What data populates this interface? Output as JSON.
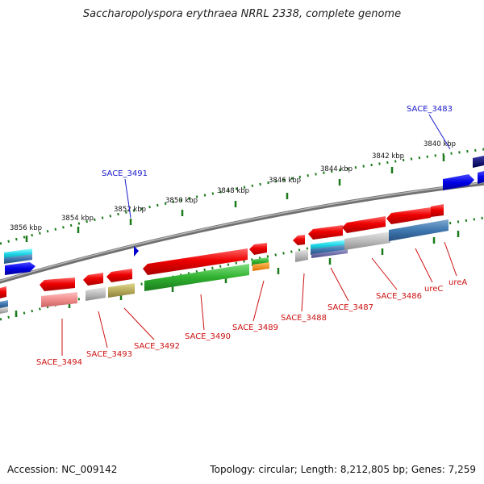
{
  "title": "Saccharopolyspora erythraea NRRL 2338, complete genome",
  "footer": {
    "accession": "Accession: NC_009142",
    "summary": "Topology: circular; Length: 8,212,805 bp; Genes: 7,259"
  },
  "colors": {
    "label_top": "#1a1acc",
    "label_bottom": "#cc1111",
    "tick": "#1a7a1a",
    "backbone": "#7a7a7a"
  },
  "ticks": [
    {
      "label": "3856 kbp"
    },
    {
      "label": "3854 kbp"
    },
    {
      "label": "3852 kbp"
    },
    {
      "label": "3850 kbp"
    },
    {
      "label": "3848 kbp"
    },
    {
      "label": "3846 kbp"
    },
    {
      "label": "3844 kbp"
    },
    {
      "label": "3842 kbp"
    },
    {
      "label": "3840 kbp"
    }
  ],
  "top_labels": [
    {
      "label": "SACE_3491"
    },
    {
      "label": "SACE_3483"
    }
  ],
  "bottom_labels": [
    {
      "label": "SACE_3494"
    },
    {
      "label": "SACE_3493"
    },
    {
      "label": "SACE_3492"
    },
    {
      "label": "SACE_3490"
    },
    {
      "label": "SACE_3489"
    },
    {
      "label": "SACE_3488"
    },
    {
      "label": "SACE_3487"
    },
    {
      "label": "SACE_3486"
    },
    {
      "label": "ureC"
    },
    {
      "label": "ureA"
    }
  ]
}
